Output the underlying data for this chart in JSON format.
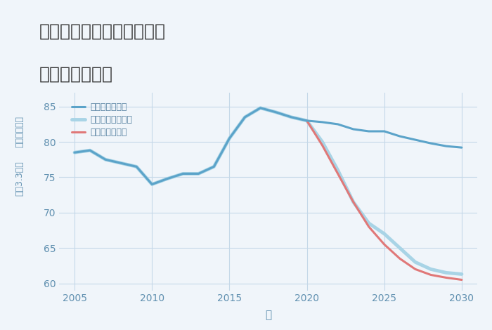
{
  "title_line1": "兵庫県西宮市今津二葉町の",
  "title_line2": "土地の価格推移",
  "xlabel": "年",
  "ylabel_top": "単価（万円）",
  "ylabel_bottom": "平（3.3㎡）",
  "xlim": [
    2004.0,
    2031.0
  ],
  "ylim": [
    59.0,
    87.0
  ],
  "yticks": [
    60,
    65,
    70,
    75,
    80,
    85
  ],
  "xticks": [
    2005,
    2010,
    2015,
    2020,
    2025,
    2030
  ],
  "good_scenario": {
    "label": "グッドシナリオ",
    "color": "#5ba3c9",
    "linewidth": 2.2,
    "years": [
      2005,
      2006,
      2007,
      2008,
      2009,
      2010,
      2011,
      2012,
      2013,
      2014,
      2015,
      2016,
      2017,
      2018,
      2019,
      2020,
      2021,
      2022,
      2023,
      2024,
      2025,
      2026,
      2027,
      2028,
      2029,
      2030
    ],
    "values": [
      78.5,
      78.8,
      77.5,
      77.0,
      76.5,
      74.0,
      74.8,
      75.5,
      75.5,
      76.5,
      80.5,
      83.5,
      84.8,
      84.2,
      83.5,
      83.0,
      82.8,
      82.5,
      81.8,
      81.5,
      81.5,
      80.8,
      80.3,
      79.8,
      79.4,
      79.2
    ]
  },
  "bad_scenario": {
    "label": "バッドシナリオ",
    "color": "#e07878",
    "linewidth": 2.2,
    "years": [
      2020,
      2021,
      2022,
      2023,
      2024,
      2025,
      2026,
      2027,
      2028,
      2029,
      2030
    ],
    "values": [
      83.0,
      79.5,
      75.5,
      71.5,
      68.0,
      65.5,
      63.5,
      62.0,
      61.2,
      60.8,
      60.5
    ]
  },
  "normal_scenario": {
    "label": "ノーマルシナリオ",
    "color": "#a8d4e6",
    "linewidth": 3.5,
    "years": [
      2005,
      2006,
      2007,
      2008,
      2009,
      2010,
      2011,
      2012,
      2013,
      2014,
      2015,
      2016,
      2017,
      2018,
      2019,
      2020,
      2021,
      2022,
      2023,
      2024,
      2025,
      2026,
      2027,
      2028,
      2029,
      2030
    ],
    "values": [
      78.5,
      78.8,
      77.5,
      77.0,
      76.5,
      74.0,
      74.8,
      75.5,
      75.5,
      76.5,
      80.5,
      83.5,
      84.8,
      84.2,
      83.5,
      83.0,
      80.0,
      76.0,
      71.5,
      68.5,
      67.0,
      65.0,
      63.0,
      62.0,
      61.5,
      61.3
    ]
  },
  "background_color": "#f0f5fa",
  "plot_bg_color": "#f0f5fa",
  "grid_color": "#c5d8e8",
  "title_color": "#333333",
  "axis_label_color": "#6090b0",
  "tick_color": "#6090b0",
  "legend_label_color": "#5580a0",
  "title_fontsize": 18,
  "tick_fontsize": 10,
  "xlabel_fontsize": 11,
  "ylabel_fontsize": 9,
  "legend_fontsize": 9
}
